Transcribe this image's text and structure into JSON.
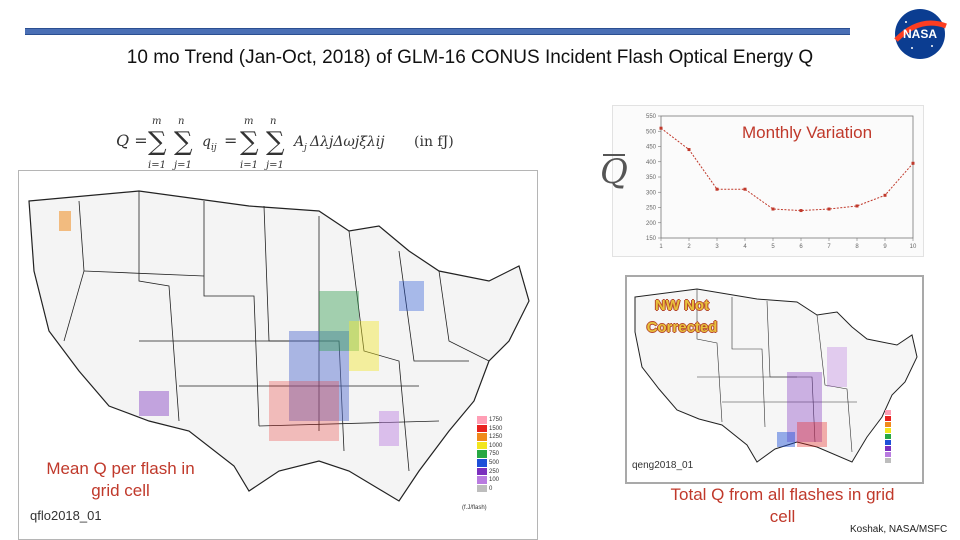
{
  "slide": {
    "title": "10 mo Trend (Jan-Oct, 2018) of GLM-16 CONUS Incident Flash Optical Energy Q",
    "credit": "Koshak, NASA/MSFC",
    "logo_text": "NASA",
    "equation_unit": "(in fJ)"
  },
  "labels": {
    "monthly": "Monthly Variation",
    "mean_q": "Mean Q per flash in grid cell",
    "total_q": "Total Q from all flashes in grid cell",
    "nw_line1": "NW Not",
    "nw_line2": "Corrected",
    "qbar_symbol": "Q"
  },
  "maps": {
    "left_id": "qflo2018_01",
    "right_id": "qeng2018_01",
    "unit": "(f.J/flash)",
    "legend_ticks": [
      "1750",
      "1500",
      "1250",
      "1000",
      "750",
      "500",
      "250",
      "100",
      "0"
    ],
    "legend_colors": [
      "#ff9eb5",
      "#e8211e",
      "#f08a1c",
      "#f2e61e",
      "#27a844",
      "#1d4fd8",
      "#7b2fbe",
      "#b97be0",
      "#bdbdbd"
    ]
  },
  "chart_data": {
    "type": "line",
    "x": [
      1,
      2,
      3,
      4,
      5,
      6,
      7,
      8,
      9,
      10
    ],
    "values": [
      510,
      440,
      310,
      310,
      245,
      240,
      245,
      255,
      290,
      395
    ],
    "xlim": [
      1,
      10
    ],
    "ylim": [
      150,
      550
    ],
    "x_ticks": [
      "1",
      "2",
      "3",
      "4",
      "5",
      "6",
      "7",
      "8",
      "9",
      "10"
    ],
    "y_ticks": [
      "150",
      "200",
      "250",
      "300",
      "350",
      "400",
      "450",
      "500",
      "550"
    ],
    "color": "#c0392b"
  }
}
